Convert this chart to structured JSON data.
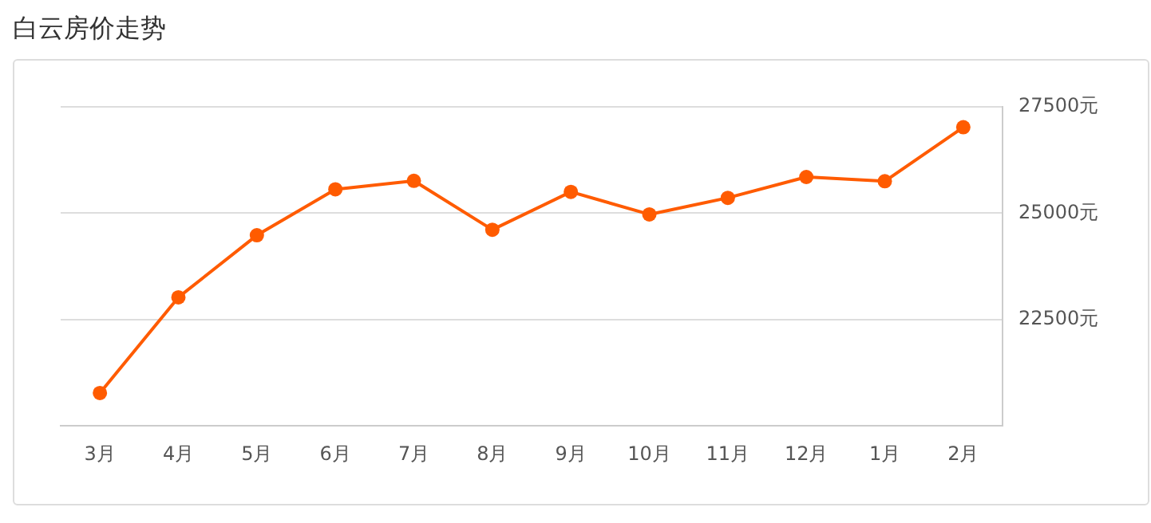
{
  "chart_data": {
    "type": "line",
    "title": "白云房价走势",
    "categories": [
      "3月",
      "4月",
      "5月",
      "6月",
      "7月",
      "8月",
      "9月",
      "10月",
      "11月",
      "12月",
      "1月",
      "2月"
    ],
    "series": [
      {
        "color": "#ff5b00",
        "values": [
          20770,
          23020,
          24480,
          25560,
          25760,
          24610,
          25500,
          24970,
          25360,
          25850,
          25750,
          27020
        ]
      }
    ],
    "ylim": [
      20000,
      27500
    ],
    "yticks": [
      {
        "value": 20000,
        "label": null
      },
      {
        "value": 22500,
        "label": "22500元"
      },
      {
        "value": 25000,
        "label": "25000元"
      },
      {
        "value": 27500,
        "label": "27500元"
      }
    ],
    "grid": "y",
    "marker": "circle",
    "line_style": "solid",
    "legend": false
  }
}
